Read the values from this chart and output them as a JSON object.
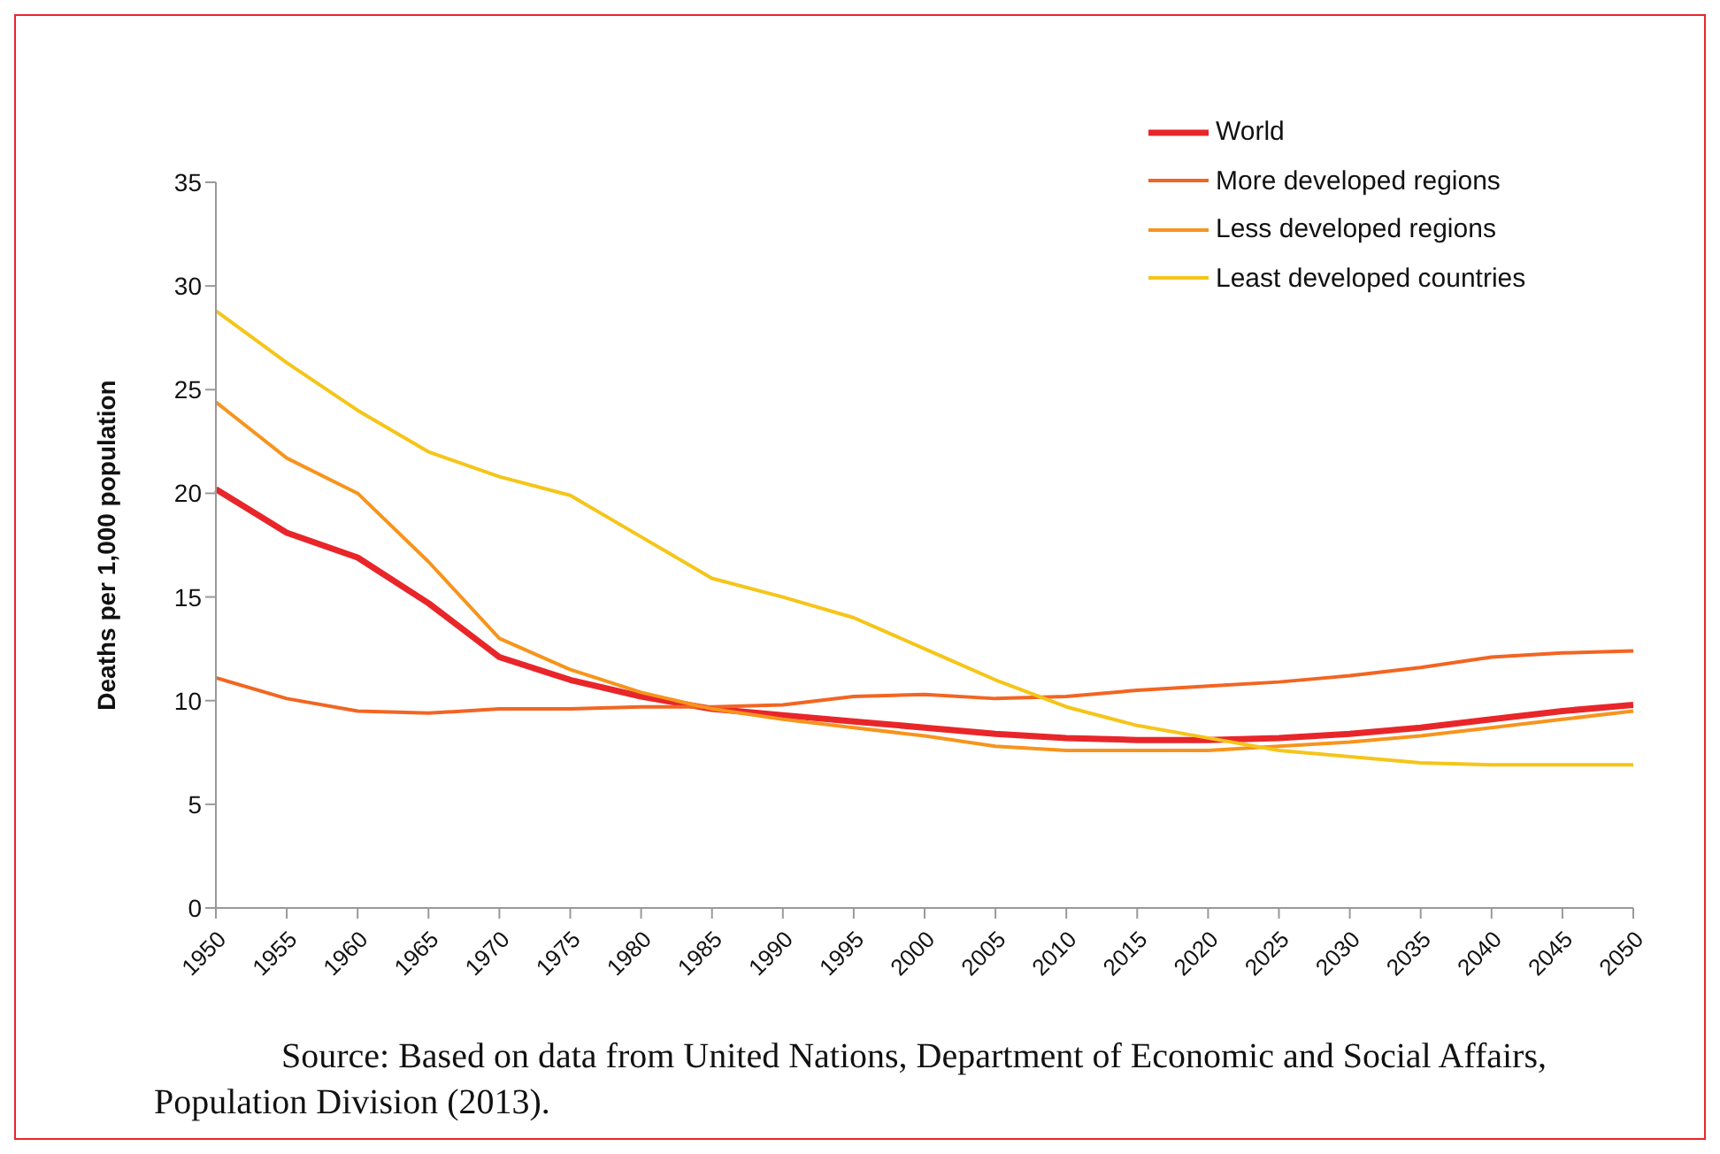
{
  "chart_data": {
    "type": "line",
    "ylabel": "Deaths per 1,000 population",
    "categories": [
      "1950",
      "1955",
      "1960",
      "1965",
      "1970",
      "1975",
      "1980",
      "1985",
      "1990",
      "1995",
      "2000",
      "2005",
      "2010",
      "2015",
      "2020",
      "2025",
      "2030",
      "2035",
      "2040",
      "2045",
      "2050"
    ],
    "ylim": [
      0,
      35
    ],
    "yticks": [
      0,
      5,
      10,
      15,
      20,
      25,
      30,
      35
    ],
    "grid": false,
    "legend": "top right",
    "marker": "none",
    "series": [
      {
        "name": "World",
        "color": "#e8262a",
        "values": [
          20.2,
          18.1,
          16.9,
          14.7,
          12.1,
          11.0,
          10.2,
          9.6,
          9.3,
          9.0,
          8.7,
          8.4,
          8.2,
          8.1,
          8.1,
          8.2,
          8.4,
          8.7,
          9.1,
          9.5,
          9.8
        ]
      },
      {
        "name": "More developed regions",
        "color": "#f26522",
        "values": [
          11.1,
          10.1,
          9.5,
          9.4,
          9.6,
          9.6,
          9.7,
          9.7,
          9.8,
          10.2,
          10.3,
          10.1,
          10.2,
          10.5,
          10.7,
          10.9,
          11.2,
          11.6,
          12.1,
          12.3,
          12.4
        ]
      },
      {
        "name": "Less developed regions",
        "color": "#f7941d",
        "values": [
          24.4,
          21.7,
          20.0,
          16.7,
          13.0,
          11.5,
          10.4,
          9.6,
          9.1,
          8.7,
          8.3,
          7.8,
          7.6,
          7.6,
          7.6,
          7.8,
          8.0,
          8.3,
          8.7,
          9.1,
          9.5
        ]
      },
      {
        "name": "Least developed countries",
        "color": "#f5c518",
        "values": [
          28.8,
          26.3,
          24.0,
          22.0,
          20.8,
          19.9,
          17.9,
          15.9,
          15.0,
          14.0,
          12.5,
          11.0,
          9.7,
          8.8,
          8.2,
          7.6,
          7.3,
          7.0,
          6.9,
          6.9,
          6.9
        ]
      }
    ],
    "annotations": [
      "Source: Based on data from United Nations, Department of Economic and Social Affairs, Population Division (2013)."
    ]
  }
}
